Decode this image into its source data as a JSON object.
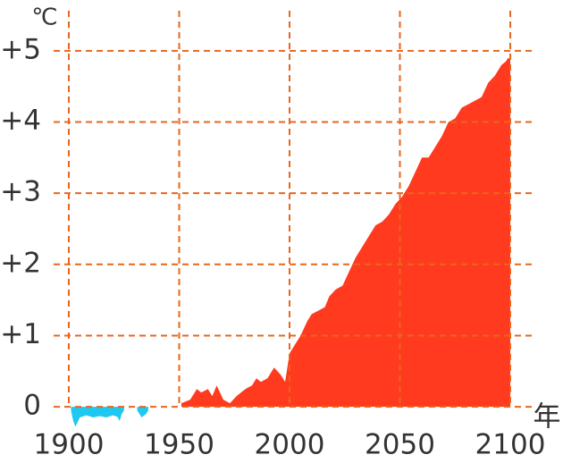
{
  "chart_data": {
    "type": "area",
    "y_unit": "℃",
    "x_unit": "年",
    "xlim": [
      1900,
      2100
    ],
    "xticks": [
      1900,
      1950,
      2000,
      2050,
      2100
    ],
    "ylim": [
      -0.3,
      5.5
    ],
    "yticks": [
      {
        "value": 0,
        "label": "0"
      },
      {
        "value": 1,
        "label": "+1"
      },
      {
        "value": 2,
        "label": "+2"
      },
      {
        "value": 3,
        "label": "+3"
      },
      {
        "value": 4,
        "label": "+4"
      },
      {
        "value": 5,
        "label": "+5"
      }
    ],
    "grid": true,
    "series": [
      {
        "color": "#1ec8f0",
        "x": [
          1901,
          1902,
          1903,
          1905,
          1908,
          1911,
          1914,
          1917,
          1920,
          1922,
          1923,
          1924,
          1925,
          null,
          1931,
          1933,
          1935,
          1936
        ],
        "values": [
          -0.05,
          -0.2,
          -0.28,
          -0.15,
          -0.12,
          -0.15,
          -0.13,
          -0.15,
          -0.12,
          -0.14,
          -0.2,
          -0.1,
          -0.05,
          null,
          -0.05,
          -0.15,
          -0.1,
          -0.05
        ]
      },
      {
        "color": "#ff3a1e",
        "x": [
          1951,
          1955,
          1958,
          1960,
          1963,
          1965,
          1967,
          1970,
          1973,
          1976,
          1980,
          1983,
          1985,
          1987,
          1990,
          1993,
          1996,
          1998,
          2000,
          2003,
          2005,
          2008,
          2010,
          2013,
          2016,
          2018,
          2021,
          2024,
          2027,
          2030,
          2033,
          2036,
          2039,
          2042,
          2045,
          2048,
          2051,
          2054,
          2057,
          2060,
          2063,
          2066,
          2069,
          2072,
          2075,
          2078,
          2081,
          2084,
          2087,
          2090,
          2093,
          2096,
          2098,
          2099,
          2100
        ],
        "values": [
          0.05,
          0.1,
          0.25,
          0.2,
          0.25,
          0.15,
          0.3,
          0.1,
          0.05,
          0.15,
          0.25,
          0.3,
          0.4,
          0.35,
          0.4,
          0.55,
          0.45,
          0.35,
          0.75,
          0.9,
          1.0,
          1.2,
          1.3,
          1.35,
          1.4,
          1.55,
          1.65,
          1.7,
          1.9,
          2.1,
          2.25,
          2.4,
          2.55,
          2.6,
          2.7,
          2.85,
          2.95,
          3.1,
          3.3,
          3.5,
          3.5,
          3.65,
          3.8,
          4.0,
          4.05,
          4.2,
          4.25,
          4.3,
          4.35,
          4.55,
          4.65,
          4.8,
          4.85,
          4.9,
          4.88
        ]
      }
    ]
  }
}
